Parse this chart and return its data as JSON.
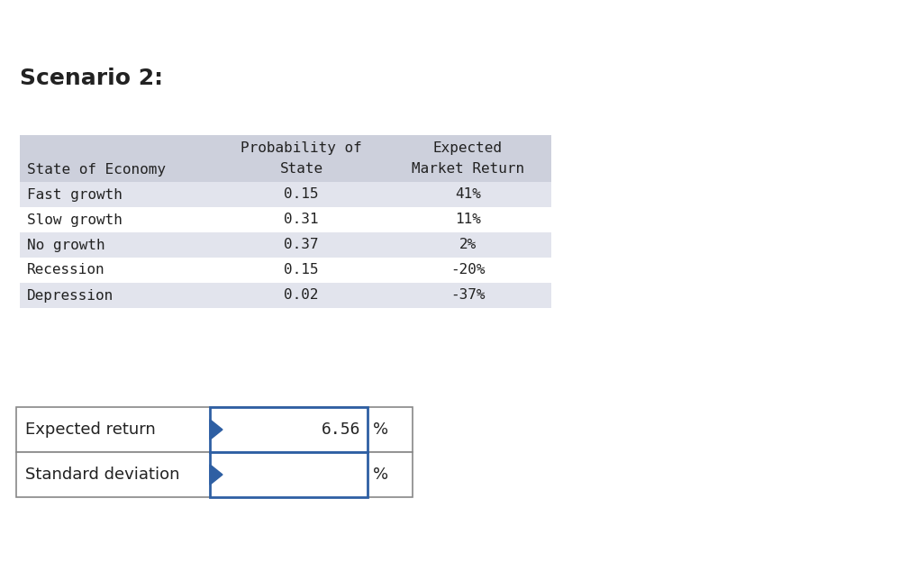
{
  "title": "Scenario 2:",
  "title_fontsize": 18,
  "background_color": "#ffffff",
  "table_header_bg": "#cdd0dc",
  "table_row_bg_alt": "#e2e4ed",
  "table_row_bg_white": "#ffffff",
  "table_font": "monospace",
  "table_fontsize": 11.5,
  "header_line1": [
    "",
    "Probability of",
    "Expected"
  ],
  "header_line2": [
    "State of Economy",
    "State",
    "Market Return"
  ],
  "rows": [
    [
      "Fast growth",
      "0.15",
      "41%"
    ],
    [
      "Slow growth",
      "0.31",
      "11%"
    ],
    [
      "No growth",
      "0.37",
      "2%"
    ],
    [
      "Recession",
      "0.15",
      "-20%"
    ],
    [
      "Depression",
      "0.02",
      "-37%"
    ]
  ],
  "summary_labels": [
    "Expected return",
    "Standard deviation"
  ],
  "summary_values": [
    "6.56",
    ""
  ],
  "summary_units": [
    "%",
    "%"
  ],
  "arrow_color": "#2e5fa3",
  "summary_box_border": "#888888",
  "summary_val_border": "#2e5fa3"
}
